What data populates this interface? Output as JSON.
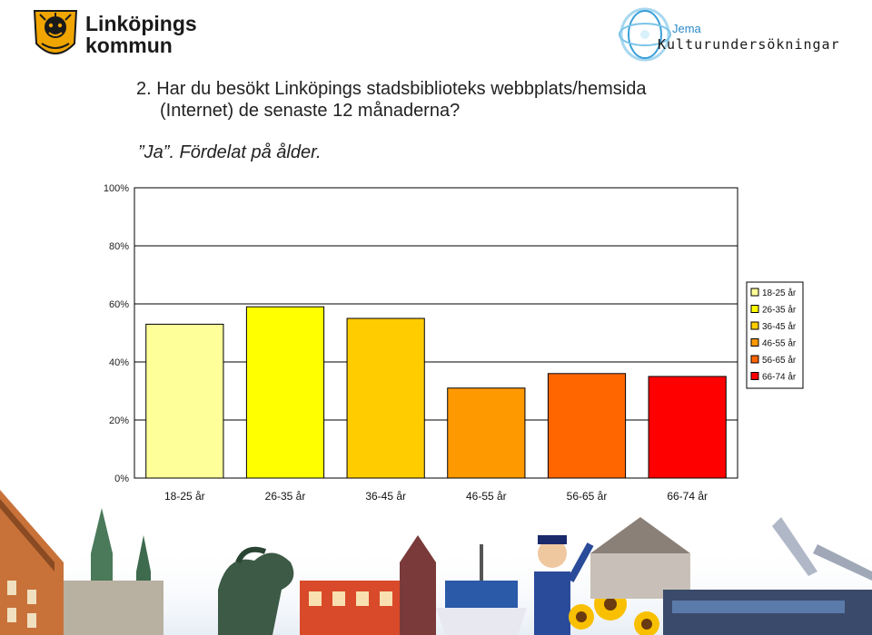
{
  "header": {
    "left_logo": {
      "line1": "Linköpings",
      "line2": "kommun",
      "icon": "lion-crest-icon",
      "color": "#f0a500"
    },
    "right_logo": {
      "small": "Jema",
      "big": "Kulturundersökningar",
      "icon": "swirl-globe-icon",
      "color": "#3aa0d8"
    }
  },
  "question": {
    "line1": "2. Har du besökt Linköpings stadsbiblioteks webbplats/hemsida",
    "line2": "(Internet) de senaste 12 månaderna?",
    "subtitle": "”Ja”. Fördelat på ålder."
  },
  "chart_data": {
    "type": "bar",
    "categories": [
      "18-25 år",
      "26-35 år",
      "36-45 år",
      "46-55 år",
      "56-65 år",
      "66-74 år"
    ],
    "values": [
      53,
      59,
      55,
      31,
      36,
      35
    ],
    "colors": [
      "#ffff99",
      "#ffff00",
      "#ffcc00",
      "#ff9900",
      "#ff6600",
      "#ff0000"
    ],
    "yticks": [
      "0%",
      "20%",
      "40%",
      "60%",
      "80%",
      "100%"
    ],
    "ylim": [
      0,
      100
    ],
    "grid": true,
    "legend": {
      "position": "right",
      "entries": [
        "18-25 år",
        "26-35 år",
        "36-45 år",
        "46-55 år",
        "56-65 år",
        "66-74 år"
      ]
    }
  }
}
